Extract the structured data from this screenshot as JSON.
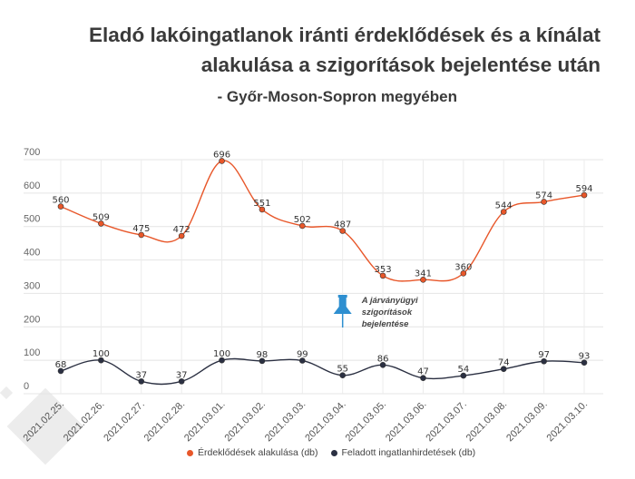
{
  "chart_data": {
    "type": "line",
    "title": "Eladó lakóingatlanok iránti érdeklődések és a kínálat alakulása a szigorítások bejelentése után",
    "subtitle": "- Győr-Moson-Sopron megyében",
    "categories": [
      "2021.02.25.",
      "2021.02.26.",
      "2021.02.27.",
      "2021.02.28.",
      "2021.03.01.",
      "2021.03.02.",
      "2021.03.03.",
      "2021.03.04.",
      "2021.03.05.",
      "2021.03.06.",
      "2021.03.07.",
      "2021.03.08.",
      "2021.03.09.",
      "2021.03.10."
    ],
    "series": [
      {
        "name": "Érdeklődések alakulása (db)",
        "color": "#e8572a",
        "values": [
          560,
          509,
          475,
          472,
          696,
          551,
          502,
          487,
          353,
          341,
          360,
          544,
          574,
          594
        ]
      },
      {
        "name": "Feladott ingatlanhirdetések (db)",
        "color": "#2b3042",
        "values": [
          68,
          100,
          37,
          37,
          100,
          98,
          99,
          55,
          86,
          47,
          54,
          74,
          97,
          93
        ]
      }
    ],
    "ylim": [
      0,
      700
    ],
    "yticks": [
      0,
      100,
      200,
      300,
      400,
      500,
      600,
      700
    ],
    "grid": true,
    "legend": "bottom",
    "annotation": {
      "lines": [
        "A járványügyi",
        "szigorítások",
        "bejelentése"
      ],
      "category": "2021.03.04.",
      "icon": "pushpin-icon",
      "color": "#2e8fd0"
    }
  }
}
